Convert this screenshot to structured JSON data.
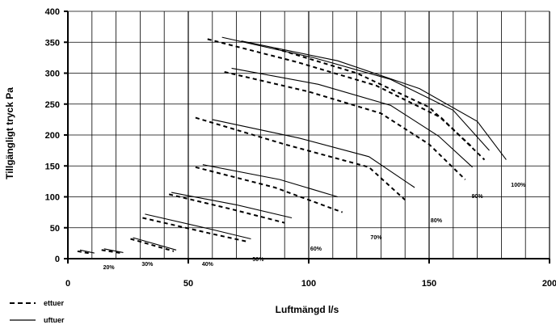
{
  "chart_data": {
    "type": "line",
    "title": "",
    "xlabel": "Luftmängd l/s",
    "ylabel": "Tillgängligt tryck Pa",
    "xlim": [
      0,
      200
    ],
    "ylim": [
      0,
      400
    ],
    "x_ticks": [
      "0",
      "50",
      "100",
      "150",
      "200"
    ],
    "y_ticks": [
      "0",
      "50",
      "100",
      "150",
      "200",
      "250",
      "300",
      "350",
      "400"
    ],
    "grid": true,
    "legend_position": "bottom-left",
    "legend": [
      {
        "label": "ettuer",
        "style": "dashed"
      },
      {
        "label": "uftuer",
        "style": "solid"
      }
    ],
    "curves": [
      {
        "fan_speed": "20%",
        "dashed": [
          [
            4,
            12
          ],
          [
            10,
            8
          ]
        ],
        "solid": [
          [
            5,
            14
          ],
          [
            11,
            9
          ]
        ]
      },
      {
        "fan_speed": "30%",
        "dashed": [
          [
            14,
            14
          ],
          [
            22,
            9
          ]
        ],
        "solid": [
          [
            15,
            16
          ],
          [
            23,
            10
          ]
        ]
      },
      {
        "fan_speed": "30%",
        "dashed": [
          [
            26,
            32
          ],
          [
            44,
            12
          ]
        ],
        "solid": [
          [
            27,
            34
          ],
          [
            45,
            14
          ]
        ]
      },
      {
        "fan_speed": "40%",
        "dashed": [
          [
            31,
            66
          ],
          [
            60,
            40
          ],
          [
            74,
            28
          ]
        ],
        "solid": [
          [
            32,
            72
          ],
          [
            60,
            47
          ],
          [
            76,
            32
          ]
        ]
      },
      {
        "fan_speed": "50%",
        "dashed": [
          [
            42,
            104
          ],
          [
            68,
            80
          ],
          [
            90,
            58
          ]
        ],
        "solid": [
          [
            43,
            107
          ],
          [
            70,
            87
          ],
          [
            93,
            66
          ]
        ]
      },
      {
        "fan_speed": "60%",
        "dashed": [
          [
            53,
            148
          ],
          [
            86,
            115
          ],
          [
            114,
            75
          ]
        ],
        "solid": [
          [
            56,
            152
          ],
          [
            88,
            128
          ],
          [
            112,
            100
          ]
        ]
      },
      {
        "fan_speed": "70%",
        "dashed": [
          [
            53,
            228
          ],
          [
            90,
            185
          ],
          [
            125,
            148
          ],
          [
            140,
            95
          ]
        ],
        "solid": [
          [
            60,
            225
          ],
          [
            96,
            195
          ],
          [
            125,
            165
          ],
          [
            144,
            115
          ]
        ]
      },
      {
        "fan_speed": "80%",
        "dashed": [
          [
            65,
            302
          ],
          [
            100,
            270
          ],
          [
            130,
            235
          ],
          [
            150,
            185
          ],
          [
            165,
            128
          ]
        ],
        "solid": [
          [
            68,
            308
          ],
          [
            104,
            282
          ],
          [
            134,
            248
          ],
          [
            154,
            198
          ],
          [
            168,
            148
          ]
        ]
      },
      {
        "fan_speed": "90%",
        "dashed": [
          [
            58,
            355
          ],
          [
            95,
            318
          ],
          [
            128,
            280
          ],
          [
            155,
            228
          ],
          [
            173,
            160
          ]
        ],
        "solid": [
          [
            64,
            358
          ],
          [
            102,
            325
          ],
          [
            134,
            290
          ],
          [
            160,
            240
          ],
          [
            175,
            175
          ]
        ]
      },
      {
        "fan_speed": "100%",
        "dashed": [
          [
            86,
            340
          ],
          [
            120,
            300
          ],
          [
            150,
            245
          ],
          [
            168,
            180
          ]
        ],
        "solid": [
          [
            72,
            352
          ],
          [
            112,
            320
          ],
          [
            146,
            275
          ],
          [
            170,
            222
          ],
          [
            182,
            160
          ]
        ]
      }
    ],
    "percent_labels": [
      {
        "text": "20%",
        "x": 17,
        "y": -13
      },
      {
        "text": "30%",
        "x": 33,
        "y": -8
      },
      {
        "text": "40%",
        "x": 58,
        "y": -8
      },
      {
        "text": "50%",
        "x": 79,
        "y": 0
      },
      {
        "text": "60%",
        "x": 103,
        "y": 17
      },
      {
        "text": "70%",
        "x": 128,
        "y": 35
      },
      {
        "text": "80%",
        "x": 153,
        "y": 63
      },
      {
        "text": "90%",
        "x": 170,
        "y": 102
      },
      {
        "text": "100%",
        "x": 187,
        "y": 120
      }
    ]
  }
}
